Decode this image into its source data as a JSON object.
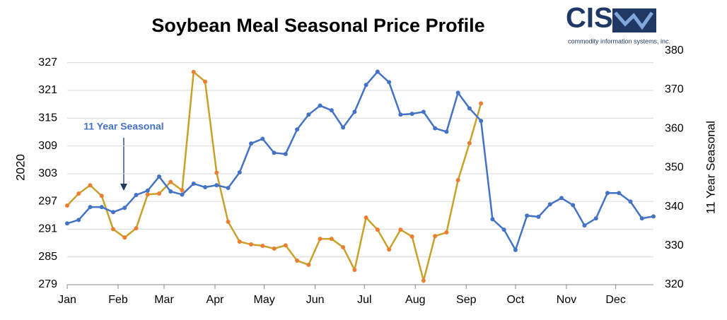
{
  "logo": {
    "text": "CIS",
    "tagline": "commodity information systems, inc."
  },
  "chart_data": {
    "type": "line",
    "title": "Soybean Meal Seasonal Price Profile",
    "annotation": "11 Year Seasonal",
    "x": [
      0,
      7,
      14,
      21,
      28,
      35,
      42,
      49,
      56,
      63,
      70,
      77,
      84,
      91,
      98,
      105,
      112,
      119,
      126,
      133,
      140,
      147,
      154,
      161,
      168,
      175,
      182,
      189,
      196,
      203,
      210,
      217,
      224,
      231,
      238,
      245,
      252,
      259,
      266,
      273,
      280,
      287,
      294,
      301,
      308,
      315,
      322,
      329,
      336,
      343,
      350,
      357
    ],
    "xlim": [
      0,
      357
    ],
    "xticks": [
      {
        "value": 0,
        "label": "Jan"
      },
      {
        "value": 31,
        "label": "Feb"
      },
      {
        "value": 59,
        "label": "Mar"
      },
      {
        "value": 90,
        "label": "Apr"
      },
      {
        "value": 120,
        "label": "May"
      },
      {
        "value": 151,
        "label": "Jun"
      },
      {
        "value": 181,
        "label": "Jul"
      },
      {
        "value": 212,
        "label": "Aug"
      },
      {
        "value": 243,
        "label": "Sep"
      },
      {
        "value": 273,
        "label": "Oct"
      },
      {
        "value": 304,
        "label": "Nov"
      },
      {
        "value": 334,
        "label": "Dec"
      }
    ],
    "ylim": [
      279,
      329.6
    ],
    "yticks": [
      279,
      285,
      291,
      297,
      303,
      309,
      315,
      321,
      327
    ],
    "y2lim": [
      320,
      380
    ],
    "y2ticks": [
      320,
      330,
      340,
      350,
      360,
      370,
      380
    ],
    "grid": true,
    "series": [
      {
        "name": "2020",
        "color": "#c9a02a",
        "marker_color": "#ed7d31",
        "values": [
          296.1,
          298.7,
          300.5,
          298.2,
          291.0,
          289.2,
          291.2,
          298.5,
          298.7,
          301.2,
          299.4,
          325.0,
          322.9,
          303.2,
          292.6,
          288.3,
          287.7,
          287.4,
          286.8,
          287.5,
          284.2,
          283.3,
          288.9,
          288.9,
          287.1,
          282.2,
          293.5,
          290.9,
          286.6,
          290.9,
          289.4,
          279.9,
          289.5,
          290.3,
          301.6,
          309.6,
          318.2,
          null,
          null,
          null,
          null,
          null,
          null,
          null,
          null,
          null,
          null,
          null,
          null,
          null,
          null,
          null
        ]
      },
      {
        "name": "11 Year Seasonal",
        "color": "#4472c4",
        "marker_color": "#4472c4",
        "axis": "y2",
        "values": [
          335.7,
          336.6,
          339.9,
          339.9,
          338.6,
          339.7,
          343.0,
          344.1,
          347.7,
          343.9,
          343.1,
          345.9,
          345.0,
          345.5,
          344.8,
          348.8,
          356.2,
          357.4,
          353.8,
          353.5,
          359.8,
          363.6,
          365.9,
          364.7,
          360.3,
          364.3,
          371.2,
          374.6,
          371.9,
          363.6,
          363.8,
          364.3,
          360.1,
          359.2,
          369.2,
          365.2,
          362.0,
          336.8,
          334.1,
          328.9,
          337.7,
          337.4,
          340.6,
          342.2,
          340.4,
          335.2,
          337.0,
          343.5,
          343.5,
          341.3,
          337.0,
          337.5
        ]
      }
    ]
  }
}
